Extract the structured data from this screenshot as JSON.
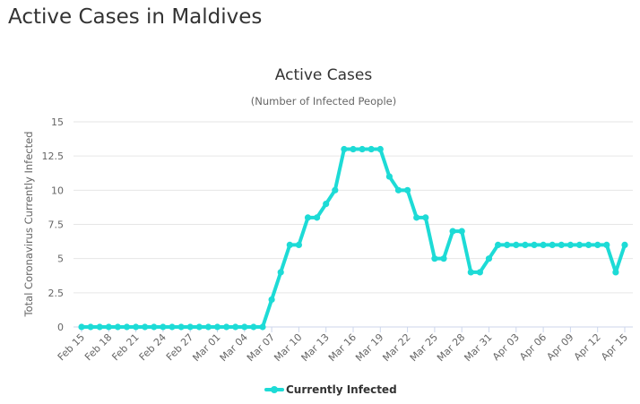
{
  "page": {
    "heading": "Active Cases in Maldives"
  },
  "chart_data": {
    "type": "line",
    "title": "Active Cases",
    "subtitle": "(Number of Infected People)",
    "xlabel": "",
    "ylabel": "Total Coronavirus Currently Infected",
    "ylim": [
      0,
      15
    ],
    "y_ticks": [
      "0",
      "2.5",
      "5",
      "7.5",
      "10",
      "12.5",
      "15"
    ],
    "grid": "horizontal",
    "legend_position": "bottom-center",
    "categories": [
      "Feb 15",
      "Feb 16",
      "Feb 17",
      "Feb 18",
      "Feb 19",
      "Feb 20",
      "Feb 21",
      "Feb 22",
      "Feb 23",
      "Feb 24",
      "Feb 25",
      "Feb 26",
      "Feb 27",
      "Feb 28",
      "Feb 29",
      "Mar 01",
      "Mar 02",
      "Mar 03",
      "Mar 04",
      "Mar 05",
      "Mar 06",
      "Mar 07",
      "Mar 08",
      "Mar 09",
      "Mar 10",
      "Mar 11",
      "Mar 12",
      "Mar 13",
      "Mar 14",
      "Mar 15",
      "Mar 16",
      "Mar 17",
      "Mar 18",
      "Mar 19",
      "Mar 20",
      "Mar 21",
      "Mar 22",
      "Mar 23",
      "Mar 24",
      "Mar 25",
      "Mar 26",
      "Mar 27",
      "Mar 28",
      "Mar 29",
      "Mar 30",
      "Mar 31",
      "Apr 01",
      "Apr 02",
      "Apr 03",
      "Apr 04",
      "Apr 05",
      "Apr 06",
      "Apr 07",
      "Apr 08",
      "Apr 09",
      "Apr 10",
      "Apr 11",
      "Apr 12",
      "Apr 13",
      "Apr 14",
      "Apr 15"
    ],
    "x_tick_labels": [
      "Feb 15",
      "Feb 18",
      "Feb 21",
      "Feb 24",
      "Feb 27",
      "Mar 01",
      "Mar 04",
      "Mar 07",
      "Mar 10",
      "Mar 13",
      "Mar 16",
      "Mar 19",
      "Mar 22",
      "Mar 25",
      "Mar 28",
      "Mar 31",
      "Apr 03",
      "Apr 06",
      "Apr 09",
      "Apr 12",
      "Apr 15"
    ],
    "series": [
      {
        "name": "Currently Infected",
        "color": "#1ddbd6",
        "values": [
          0,
          0,
          0,
          0,
          0,
          0,
          0,
          0,
          0,
          0,
          0,
          0,
          0,
          0,
          0,
          0,
          0,
          0,
          0,
          0,
          0,
          2,
          4,
          6,
          6,
          8,
          8,
          9,
          10,
          13,
          13,
          13,
          13,
          13,
          11,
          10,
          10,
          8,
          8,
          5,
          5,
          7,
          7,
          4,
          4,
          5,
          6,
          6,
          6,
          6,
          6,
          6,
          6,
          6,
          6,
          6,
          6,
          6,
          6,
          4,
          6
        ]
      }
    ]
  }
}
